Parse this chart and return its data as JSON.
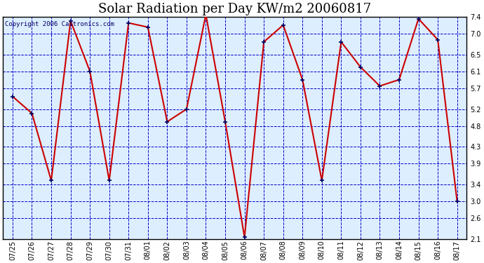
{
  "title": "Solar Radiation per Day KW/m2 20060817",
  "copyright_text": "Copyright 2006 Castronics.com",
  "dates": [
    "07/25",
    "07/26",
    "07/27",
    "07/28",
    "07/29",
    "07/30",
    "07/31",
    "08/01",
    "08/02",
    "08/03",
    "08/04",
    "08/05",
    "08/06",
    "08/07",
    "08/08",
    "08/09",
    "08/10",
    "08/11",
    "08/12",
    "08/13",
    "08/14",
    "08/15",
    "08/16",
    "08/17"
  ],
  "values": [
    5.5,
    5.1,
    3.5,
    7.3,
    6.1,
    3.5,
    7.25,
    7.15,
    4.9,
    5.2,
    7.45,
    4.9,
    2.15,
    6.8,
    7.2,
    5.9,
    3.5,
    6.8,
    6.2,
    5.75,
    5.9,
    7.35,
    6.85,
    3.0
  ],
  "line_color": "#cc0000",
  "marker_color": "#000066",
  "fig_bg_color": "#ffffff",
  "plot_bg_color": "#ddeeff",
  "grid_color": "#0000cc",
  "title_color": "#000000",
  "border_color": "#000000",
  "ylim": [
    2.1,
    7.4
  ],
  "yticks": [
    2.1,
    2.6,
    3.0,
    3.4,
    3.9,
    4.3,
    4.8,
    5.2,
    5.7,
    6.1,
    6.5,
    7.0,
    7.4
  ],
  "title_fontsize": 13,
  "copyright_fontsize": 6.5,
  "tick_fontsize": 7,
  "linewidth": 1.5,
  "marker_size": 4,
  "marker_edgewidth": 1.2
}
